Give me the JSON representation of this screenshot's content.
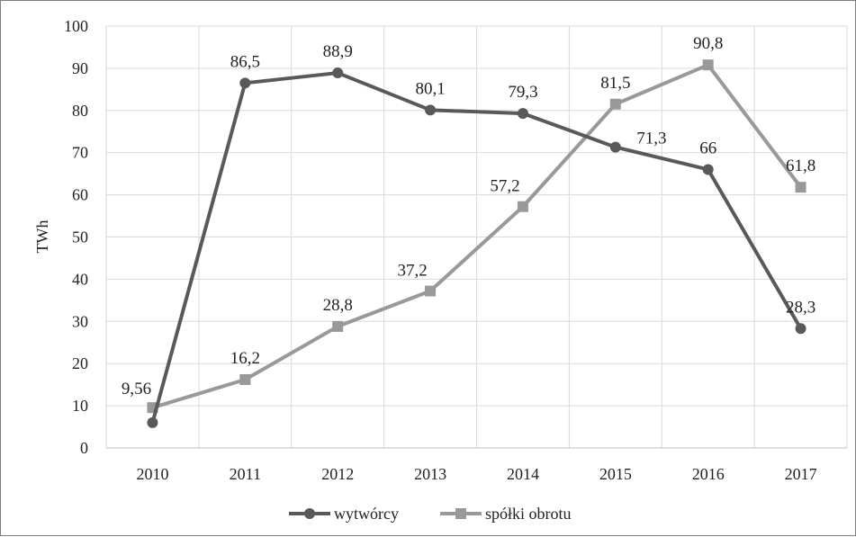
{
  "chart_data": {
    "type": "line",
    "title": "",
    "xlabel": "",
    "ylabel": "TWh",
    "ylim": [
      0,
      100
    ],
    "yticks": [
      "0",
      "10",
      "20",
      "30",
      "40",
      "50",
      "60",
      "70",
      "80",
      "90",
      "100"
    ],
    "categories": [
      "2010",
      "2011",
      "2012",
      "2013",
      "2014",
      "2015",
      "2016",
      "2017"
    ],
    "grid": true,
    "legend_position": "bottom",
    "series": [
      {
        "name": "wytwórcy",
        "color": "#595959",
        "marker": "circle",
        "values": [
          6,
          86.5,
          88.9,
          80.1,
          79.3,
          71.3,
          66,
          28.3
        ],
        "labels": [
          "",
          "86,5",
          "88,9",
          "80,1",
          "79,3",
          "71,3",
          "66",
          "28,3"
        ]
      },
      {
        "name": "spółki obrotu",
        "color": "#999999",
        "marker": "square",
        "values": [
          9.56,
          16.2,
          28.8,
          37.2,
          57.2,
          81.5,
          90.8,
          61.8
        ],
        "labels": [
          "9,56",
          "16,2",
          "28,8",
          "37,2",
          "57,2",
          "81,5",
          "90,8",
          "61,8"
        ]
      }
    ]
  }
}
